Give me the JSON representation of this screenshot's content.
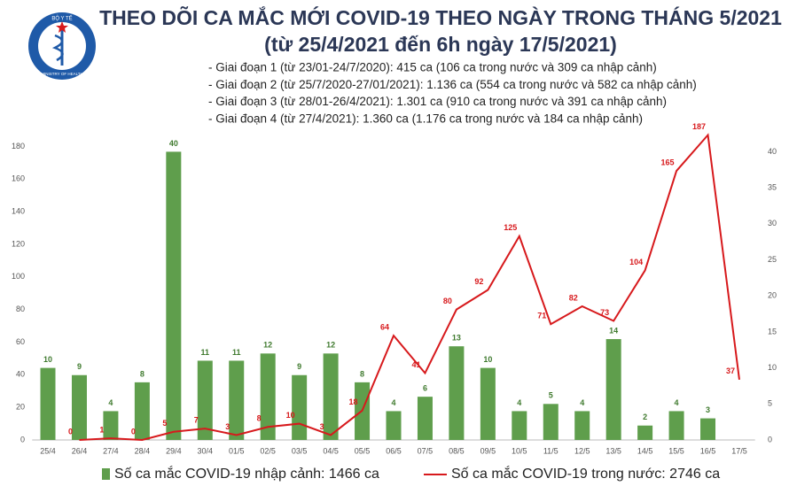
{
  "logo": {
    "top": "BỘ Y TẾ",
    "bottom": "MINISTRY OF HEALTH"
  },
  "chart_data": {
    "type": "bar-line",
    "title": "THEO DÕI CA MẮC MỚI COVID-19 THEO NGÀY TRONG THÁNG 5/2021",
    "subtitle": "(từ 25/4/2021 đến 6h ngày 17/5/2021)",
    "annotations": [
      "- Giai đoạn 1 (từ 23/01-24/7/2020): 415 ca (106 ca trong nước và 309 ca nhập cảnh)",
      "- Giai đoạn 2 (từ 25/7/2020-27/01/2021): 1.136 ca (554 ca trong nước và 582 ca nhập cảnh)",
      "- Giai đoạn 3 (từ 28/01-26/4/2021): 1.301 ca (910 ca trong nước và 391 ca nhập cảnh)",
      "- Giai đoạn 4 (từ 27/4/2021): 1.360 ca (1.176 ca trong nước và 184 ca nhập cảnh)"
    ],
    "categories": [
      "25/4",
      "26/4",
      "27/4",
      "28/4",
      "29/4",
      "30/4",
      "01/5",
      "02/5",
      "03/5",
      "04/5",
      "05/5",
      "06/5",
      "07/5",
      "08/5",
      "09/5",
      "10/5",
      "11/5",
      "12/5",
      "13/5",
      "14/5",
      "15/5",
      "16/5",
      "17/5"
    ],
    "series": [
      {
        "name": "Số ca mắc COVID-19 nhập cảnh: 1466 ca",
        "type": "bar",
        "axis": "y2",
        "color": "#5f9e4c",
        "values": [
          10,
          9,
          4,
          8,
          40,
          11,
          11,
          12,
          9,
          12,
          8,
          4,
          6,
          13,
          10,
          4,
          5,
          4,
          14,
          2,
          4,
          3,
          null
        ]
      },
      {
        "name": "Số ca mắc COVID-19 trong nước: 2746 ca",
        "type": "line",
        "color": "#d7191c",
        "values": [
          null,
          0,
          1,
          0,
          5,
          7,
          3,
          8,
          10,
          3,
          18,
          64,
          41,
          80,
          92,
          125,
          71,
          82,
          73,
          104,
          165,
          187,
          37
        ]
      }
    ],
    "ylim": [
      0,
      190
    ],
    "yticks": [
      0,
      20,
      40,
      60,
      80,
      100,
      120,
      140,
      160,
      180
    ],
    "y2lim": [
      0,
      43
    ],
    "y2ticks": [
      0,
      5,
      10,
      15,
      20,
      25,
      30,
      35,
      40
    ],
    "legend": "bottom"
  }
}
